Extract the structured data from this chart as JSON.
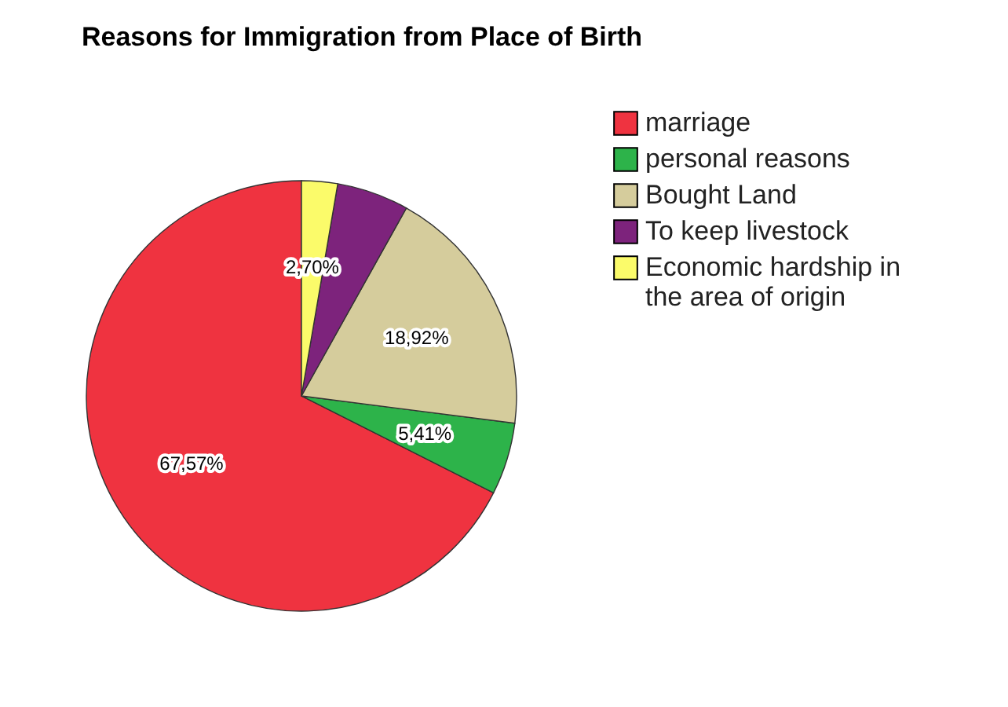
{
  "chart_data": {
    "type": "pie",
    "title": "Reasons for Immigration from Place of Birth",
    "categories": [
      "marriage",
      "personal reasons",
      "Bought Land",
      "To keep livestock",
      "Economic hardship in the area of origin"
    ],
    "values": [
      67.57,
      5.41,
      18.92,
      5.41,
      2.7
    ],
    "colors": [
      "#ef3340",
      "#2db34a",
      "#d5cc9c",
      "#7d237c",
      "#fbfb6a"
    ],
    "value_labels": [
      "67,57%",
      "5,41%",
      "18,92%",
      null,
      "2,70%"
    ],
    "legend": "top right"
  }
}
